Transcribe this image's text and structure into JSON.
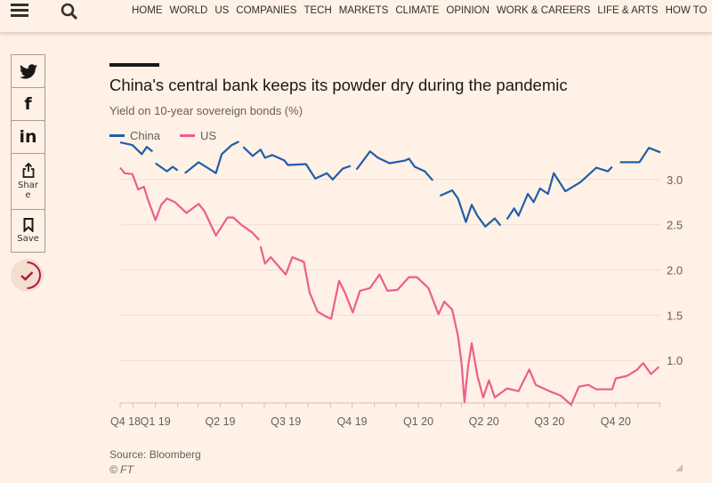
{
  "header": {
    "menu_icon": "hamburger-icon",
    "search_icon": "search-icon",
    "nav": [
      "HOME",
      "WORLD",
      "US",
      "COMPANIES",
      "TECH",
      "MARKETS",
      "CLIMATE",
      "OPINION",
      "WORK & CAREERS",
      "LIFE & ARTS",
      "HOW TO"
    ]
  },
  "share": {
    "twitter_icon": "twitter-icon",
    "facebook_icon": "facebook-icon",
    "linkedin_icon": "linkedin-icon",
    "share_label": "Shar e",
    "share_label_1": "Shar",
    "share_label_2": "e",
    "save_label": "Save",
    "myft_icon": "check-icon"
  },
  "footer": {
    "source": "Source: Bloomberg",
    "copyright": "© FT"
  },
  "chart_data": {
    "type": "line",
    "title": "China's central bank keeps its powder dry during the pandemic",
    "subtitle": "Yield on 10-year sovereign bonds (%)",
    "xlabel": "",
    "ylabel": "",
    "xlim": [
      "2018-11-13",
      "2020-12-02"
    ],
    "ylim": [
      0.53,
      3.45
    ],
    "grid": true,
    "legend_placement": "top-left",
    "y_ticks": [
      1.0,
      1.5,
      2.0,
      2.5,
      3.0
    ],
    "y_tick_labels": [
      "1.0",
      "1.5",
      "2.0",
      "2.5",
      "3.0"
    ],
    "x_ticks": [
      {
        "label": "Q4 18",
        "date": "2018-11-13"
      },
      {
        "label": "Q1 19",
        "date": "2019-01-01"
      },
      {
        "label": "Q2 19",
        "date": "2019-04-01"
      },
      {
        "label": "Q3 19",
        "date": "2019-07-01"
      },
      {
        "label": "Q4 19",
        "date": "2019-10-01"
      },
      {
        "label": "Q1 20",
        "date": "2020-01-01"
      },
      {
        "label": "Q2 20",
        "date": "2020-04-01"
      },
      {
        "label": "Q3 20",
        "date": "2020-07-01"
      },
      {
        "label": "Q4 20",
        "date": "2020-10-01"
      }
    ],
    "series": [
      {
        "name": "China",
        "color": "#1f5ea8",
        "segments": [
          [
            [
              "2018-11-13",
              3.41
            ],
            [
              "2018-11-30",
              3.38
            ],
            [
              "2018-12-13",
              3.28
            ],
            [
              "2018-12-20",
              3.36
            ],
            [
              "2018-12-28",
              3.31
            ]
          ],
          [
            [
              "2019-01-01",
              3.18
            ],
            [
              "2019-01-17",
              3.09
            ],
            [
              "2019-01-25",
              3.14
            ],
            [
              "2019-02-01",
              3.1
            ]
          ],
          [
            [
              "2019-02-11",
              3.07
            ],
            [
              "2019-03-02",
              3.19
            ],
            [
              "2019-03-12",
              3.14
            ],
            [
              "2019-03-26",
              3.07
            ],
            [
              "2019-04-03",
              3.28
            ],
            [
              "2019-04-17",
              3.38
            ],
            [
              "2019-04-27",
              3.42
            ]
          ],
          [
            [
              "2019-05-03",
              3.36
            ],
            [
              "2019-05-16",
              3.26
            ],
            [
              "2019-05-27",
              3.33
            ],
            [
              "2019-06-02",
              3.24
            ],
            [
              "2019-06-12",
              3.27
            ],
            [
              "2019-06-29",
              3.21
            ],
            [
              "2019-07-04",
              3.16
            ],
            [
              "2019-07-29",
              3.17
            ],
            [
              "2019-08-11",
              3.01
            ],
            [
              "2019-08-27",
              3.07
            ],
            [
              "2019-09-04",
              3.0
            ],
            [
              "2019-09-18",
              3.12
            ],
            [
              "2019-09-29",
              3.15
            ]
          ],
          [
            [
              "2019-10-07",
              3.11
            ],
            [
              "2019-10-26",
              3.31
            ],
            [
              "2019-11-06",
              3.24
            ],
            [
              "2019-11-22",
              3.18
            ],
            [
              "2019-12-14",
              3.21
            ],
            [
              "2019-12-19",
              3.23
            ],
            [
              "2019-12-27",
              3.14
            ],
            [
              "2020-01-10",
              3.09
            ],
            [
              "2020-01-21",
              2.99
            ]
          ],
          [
            [
              "2020-01-31",
              2.82
            ],
            [
              "2020-02-17",
              2.88
            ],
            [
              "2020-02-25",
              2.79
            ],
            [
              "2020-03-07",
              2.53
            ],
            [
              "2020-03-15",
              2.72
            ],
            [
              "2020-03-23",
              2.6
            ],
            [
              "2020-04-03",
              2.48
            ],
            [
              "2020-04-16",
              2.57
            ],
            [
              "2020-04-24",
              2.49
            ]
          ],
          [
            [
              "2020-05-03",
              2.56
            ],
            [
              "2020-05-13",
              2.68
            ],
            [
              "2020-05-19",
              2.6
            ],
            [
              "2020-06-01",
              2.84
            ],
            [
              "2020-06-09",
              2.75
            ],
            [
              "2020-06-18",
              2.9
            ],
            [
              "2020-06-29",
              2.84
            ],
            [
              "2020-07-07",
              3.07
            ],
            [
              "2020-07-23",
              2.87
            ],
            [
              "2020-08-13",
              2.97
            ],
            [
              "2020-09-04",
              3.13
            ],
            [
              "2020-09-20",
              3.09
            ],
            [
              "2020-09-26",
              3.14
            ]
          ],
          [
            [
              "2020-10-07",
              3.19
            ],
            [
              "2020-11-03",
              3.19
            ],
            [
              "2020-11-16",
              3.35
            ],
            [
              "2020-12-02",
              3.3
            ]
          ]
        ]
      },
      {
        "name": "US",
        "color": "#eb5e8d",
        "segments": [
          [
            [
              "2018-11-13",
              3.13
            ],
            [
              "2018-11-19",
              3.07
            ],
            [
              "2018-11-30",
              3.06
            ],
            [
              "2018-12-08",
              2.89
            ],
            [
              "2018-12-16",
              2.92
            ],
            [
              "2018-12-21",
              2.79
            ],
            [
              "2019-01-01",
              2.55
            ],
            [
              "2019-01-09",
              2.72
            ],
            [
              "2019-01-17",
              2.79
            ],
            [
              "2019-01-28",
              2.75
            ],
            [
              "2019-02-13",
              2.63
            ],
            [
              "2019-03-02",
              2.73
            ],
            [
              "2019-03-10",
              2.65
            ],
            [
              "2019-03-26",
              2.38
            ],
            [
              "2019-04-11",
              2.58
            ],
            [
              "2019-04-19",
              2.58
            ],
            [
              "2019-04-30",
              2.5
            ],
            [
              "2019-05-16",
              2.41
            ],
            [
              "2019-05-25",
              2.33
            ]
          ],
          [
            [
              "2019-05-27",
              2.26
            ],
            [
              "2019-06-02",
              2.07
            ],
            [
              "2019-06-10",
              2.14
            ],
            [
              "2019-06-23",
              2.02
            ],
            [
              "2019-07-01",
              1.95
            ],
            [
              "2019-07-10",
              2.14
            ],
            [
              "2019-07-26",
              2.09
            ],
            [
              "2019-08-03",
              1.75
            ],
            [
              "2019-08-14",
              1.54
            ],
            [
              "2019-08-27",
              1.48
            ],
            [
              "2019-09-02",
              1.46
            ],
            [
              "2019-09-13",
              1.88
            ],
            [
              "2019-09-21",
              1.75
            ],
            [
              "2019-10-02",
              1.53
            ],
            [
              "2019-10-12",
              1.77
            ],
            [
              "2019-10-26",
              1.8
            ],
            [
              "2019-11-08",
              1.95
            ],
            [
              "2019-11-19",
              1.77
            ],
            [
              "2019-12-03",
              1.78
            ],
            [
              "2019-12-19",
              1.92
            ],
            [
              "2019-12-30",
              1.92
            ],
            [
              "2020-01-15",
              1.8
            ],
            [
              "2020-01-29",
              1.51
            ],
            [
              "2020-02-06",
              1.65
            ],
            [
              "2020-02-17",
              1.56
            ],
            [
              "2020-02-25",
              1.27
            ],
            [
              "2020-03-01",
              0.97
            ],
            [
              "2020-03-05",
              0.54
            ],
            [
              "2020-03-10",
              0.93
            ],
            [
              "2020-03-15",
              1.19
            ],
            [
              "2020-03-23",
              0.83
            ],
            [
              "2020-03-31",
              0.59
            ],
            [
              "2020-04-08",
              0.78
            ],
            [
              "2020-04-16",
              0.59
            ],
            [
              "2020-05-03",
              0.69
            ],
            [
              "2020-05-19",
              0.66
            ],
            [
              "2020-06-03",
              0.9
            ],
            [
              "2020-06-12",
              0.73
            ],
            [
              "2020-07-01",
              0.66
            ],
            [
              "2020-07-17",
              0.61
            ],
            [
              "2020-07-31",
              0.51
            ],
            [
              "2020-08-11",
              0.71
            ],
            [
              "2020-08-24",
              0.73
            ],
            [
              "2020-09-04",
              0.68
            ],
            [
              "2020-09-26",
              0.68
            ],
            [
              "2020-10-01",
              0.8
            ],
            [
              "2020-10-17",
              0.83
            ],
            [
              "2020-10-31",
              0.9
            ],
            [
              "2020-11-08",
              0.97
            ],
            [
              "2020-11-19",
              0.85
            ],
            [
              "2020-11-30",
              0.93
            ]
          ]
        ]
      }
    ]
  }
}
